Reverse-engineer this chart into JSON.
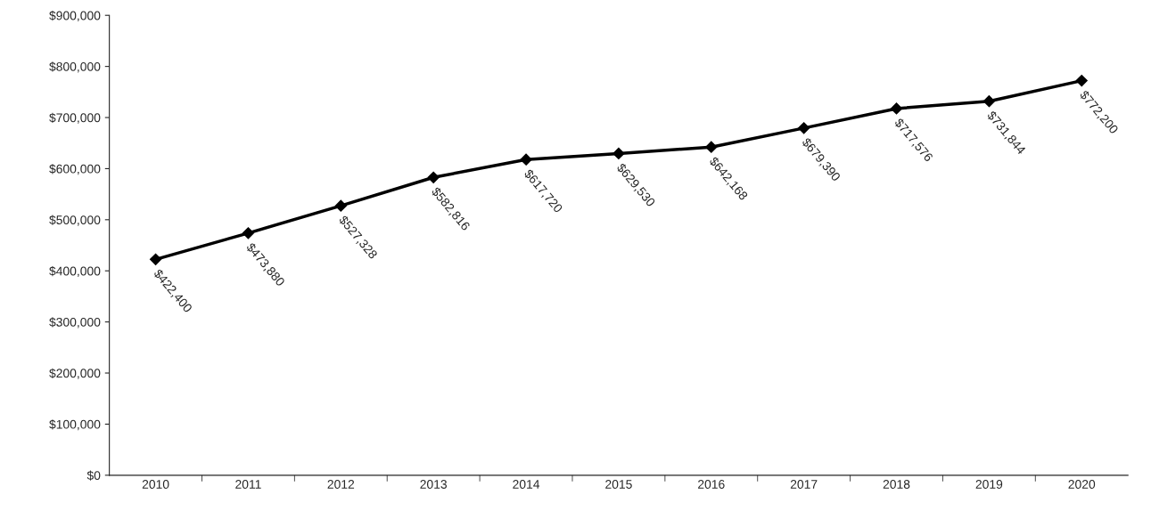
{
  "chart_data": {
    "type": "line",
    "categories": [
      "2010",
      "2011",
      "2012",
      "2013",
      "2014",
      "2015",
      "2016",
      "2017",
      "2018",
      "2019",
      "2020"
    ],
    "series": [
      {
        "color": "#000000",
        "values": [
          422400,
          473880,
          527328,
          582816,
          617720,
          629530,
          642168,
          679390,
          717576,
          731844,
          772200
        ]
      }
    ],
    "value_labels": [
      "$422,400",
      "$473,880",
      "$527,328",
      "$582,816",
      "$617,720",
      "$629,530",
      "$642,168",
      "$679,390",
      "$717,576",
      "$731,844",
      "$772,200"
    ],
    "ylim": [
      0,
      900000
    ],
    "yticks": [
      {
        "value": 0,
        "label": "$0"
      },
      {
        "value": 100000,
        "label": "$100,000"
      },
      {
        "value": 200000,
        "label": "$200,000"
      },
      {
        "value": 300000,
        "label": "$300,000"
      },
      {
        "value": 400000,
        "label": "$400,000"
      },
      {
        "value": 500000,
        "label": "$500,000"
      },
      {
        "value": 600000,
        "label": "$600,000"
      },
      {
        "value": 700000,
        "label": "$700,000"
      },
      {
        "value": 800000,
        "label": "$800,000"
      },
      {
        "value": 900000,
        "label": "$900,000"
      }
    ],
    "grid": false,
    "marker": "diamond",
    "line_style": "solid"
  }
}
